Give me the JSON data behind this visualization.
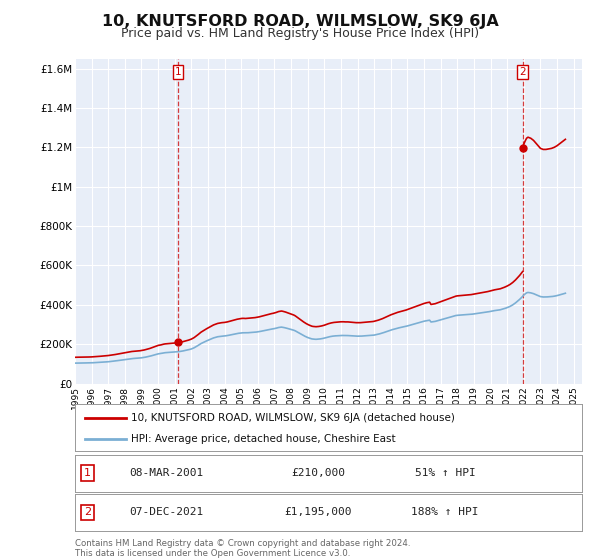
{
  "title": "10, KNUTSFORD ROAD, WILMSLOW, SK9 6JA",
  "subtitle": "Price paid vs. HM Land Registry's House Price Index (HPI)",
  "title_fontsize": 11.5,
  "subtitle_fontsize": 9,
  "background_color": "#ffffff",
  "plot_bg_color": "#e8eef8",
  "grid_color": "#ffffff",
  "ylim": [
    0,
    1650000
  ],
  "xlim_start": 1995.0,
  "xlim_end": 2025.5,
  "yticks": [
    0,
    200000,
    400000,
    600000,
    800000,
    1000000,
    1200000,
    1400000,
    1600000
  ],
  "ytick_labels": [
    "£0",
    "£200K",
    "£400K",
    "£600K",
    "£800K",
    "£1M",
    "£1.2M",
    "£1.4M",
    "£1.6M"
  ],
  "xticks": [
    1995,
    1996,
    1997,
    1998,
    1999,
    2000,
    2001,
    2002,
    2003,
    2004,
    2005,
    2006,
    2007,
    2008,
    2009,
    2010,
    2011,
    2012,
    2013,
    2014,
    2015,
    2016,
    2017,
    2018,
    2019,
    2020,
    2021,
    2022,
    2023,
    2024,
    2025
  ],
  "red_color": "#cc0000",
  "blue_color": "#7bafd4",
  "marker1_x": 2001.19,
  "marker1_y": 210000,
  "marker2_x": 2021.93,
  "marker2_y": 1195000,
  "label1_date": "08-MAR-2001",
  "label1_price": "£210,000",
  "label1_hpi": "51% ↑ HPI",
  "label2_date": "07-DEC-2021",
  "label2_price": "£1,195,000",
  "label2_hpi": "188% ↑ HPI",
  "legend_line1": "10, KNUTSFORD ROAD, WILMSLOW, SK9 6JA (detached house)",
  "legend_line2": "HPI: Average price, detached house, Cheshire East",
  "footnote1": "Contains HM Land Registry data © Crown copyright and database right 2024.",
  "footnote2": "This data is licensed under the Open Government Licence v3.0.",
  "hpi_x": [
    1995.0,
    1995.083,
    1995.167,
    1995.25,
    1995.333,
    1995.417,
    1995.5,
    1995.583,
    1995.667,
    1995.75,
    1995.833,
    1995.917,
    1996.0,
    1996.083,
    1996.167,
    1996.25,
    1996.333,
    1996.417,
    1996.5,
    1996.583,
    1996.667,
    1996.75,
    1996.833,
    1996.917,
    1997.0,
    1997.083,
    1997.167,
    1997.25,
    1997.333,
    1997.417,
    1997.5,
    1997.583,
    1997.667,
    1997.75,
    1997.833,
    1997.917,
    1998.0,
    1998.083,
    1998.167,
    1998.25,
    1998.333,
    1998.417,
    1998.5,
    1998.583,
    1998.667,
    1998.75,
    1998.833,
    1998.917,
    1999.0,
    1999.083,
    1999.167,
    1999.25,
    1999.333,
    1999.417,
    1999.5,
    1999.583,
    1999.667,
    1999.75,
    1999.833,
    1999.917,
    2000.0,
    2000.083,
    2000.167,
    2000.25,
    2000.333,
    2000.417,
    2000.5,
    2000.583,
    2000.667,
    2000.75,
    2000.833,
    2000.917,
    2001.0,
    2001.083,
    2001.167,
    2001.25,
    2001.333,
    2001.417,
    2001.5,
    2001.583,
    2001.667,
    2001.75,
    2001.833,
    2001.917,
    2002.0,
    2002.083,
    2002.167,
    2002.25,
    2002.333,
    2002.417,
    2002.5,
    2002.583,
    2002.667,
    2002.75,
    2002.833,
    2002.917,
    2003.0,
    2003.083,
    2003.167,
    2003.25,
    2003.333,
    2003.417,
    2003.5,
    2003.583,
    2003.667,
    2003.75,
    2003.833,
    2003.917,
    2004.0,
    2004.083,
    2004.167,
    2004.25,
    2004.333,
    2004.417,
    2004.5,
    2004.583,
    2004.667,
    2004.75,
    2004.833,
    2004.917,
    2005.0,
    2005.083,
    2005.167,
    2005.25,
    2005.333,
    2005.417,
    2005.5,
    2005.583,
    2005.667,
    2005.75,
    2005.833,
    2005.917,
    2006.0,
    2006.083,
    2006.167,
    2006.25,
    2006.333,
    2006.417,
    2006.5,
    2006.583,
    2006.667,
    2006.75,
    2006.833,
    2006.917,
    2007.0,
    2007.083,
    2007.167,
    2007.25,
    2007.333,
    2007.417,
    2007.5,
    2007.583,
    2007.667,
    2007.75,
    2007.833,
    2007.917,
    2008.0,
    2008.083,
    2008.167,
    2008.25,
    2008.333,
    2008.417,
    2008.5,
    2008.583,
    2008.667,
    2008.75,
    2008.833,
    2008.917,
    2009.0,
    2009.083,
    2009.167,
    2009.25,
    2009.333,
    2009.417,
    2009.5,
    2009.583,
    2009.667,
    2009.75,
    2009.833,
    2009.917,
    2010.0,
    2010.083,
    2010.167,
    2010.25,
    2010.333,
    2010.417,
    2010.5,
    2010.583,
    2010.667,
    2010.75,
    2010.833,
    2010.917,
    2011.0,
    2011.083,
    2011.167,
    2011.25,
    2011.333,
    2011.417,
    2011.5,
    2011.583,
    2011.667,
    2011.75,
    2011.833,
    2011.917,
    2012.0,
    2012.083,
    2012.167,
    2012.25,
    2012.333,
    2012.417,
    2012.5,
    2012.583,
    2012.667,
    2012.75,
    2012.833,
    2012.917,
    2013.0,
    2013.083,
    2013.167,
    2013.25,
    2013.333,
    2013.417,
    2013.5,
    2013.583,
    2013.667,
    2013.75,
    2013.833,
    2013.917,
    2014.0,
    2014.083,
    2014.167,
    2014.25,
    2014.333,
    2014.417,
    2014.5,
    2014.583,
    2014.667,
    2014.75,
    2014.833,
    2014.917,
    2015.0,
    2015.083,
    2015.167,
    2015.25,
    2015.333,
    2015.417,
    2015.5,
    2015.583,
    2015.667,
    2015.75,
    2015.833,
    2015.917,
    2016.0,
    2016.083,
    2016.167,
    2016.25,
    2016.333,
    2016.417,
    2016.5,
    2016.583,
    2016.667,
    2016.75,
    2016.833,
    2016.917,
    2017.0,
    2017.083,
    2017.167,
    2017.25,
    2017.333,
    2017.417,
    2017.5,
    2017.583,
    2017.667,
    2017.75,
    2017.833,
    2017.917,
    2018.0,
    2018.083,
    2018.167,
    2018.25,
    2018.333,
    2018.417,
    2018.5,
    2018.583,
    2018.667,
    2018.75,
    2018.833,
    2018.917,
    2019.0,
    2019.083,
    2019.167,
    2019.25,
    2019.333,
    2019.417,
    2019.5,
    2019.583,
    2019.667,
    2019.75,
    2019.833,
    2019.917,
    2020.0,
    2020.083,
    2020.167,
    2020.25,
    2020.333,
    2020.417,
    2020.5,
    2020.583,
    2020.667,
    2020.75,
    2020.833,
    2020.917,
    2021.0,
    2021.083,
    2021.167,
    2021.25,
    2021.333,
    2021.417,
    2021.5,
    2021.583,
    2021.667,
    2021.75,
    2021.833,
    2021.917,
    2022.0,
    2022.083,
    2022.167,
    2022.25,
    2022.333,
    2022.417,
    2022.5,
    2022.583,
    2022.667,
    2022.75,
    2022.833,
    2022.917,
    2023.0,
    2023.083,
    2023.167,
    2023.25,
    2023.333,
    2023.417,
    2023.5,
    2023.583,
    2023.667,
    2023.75,
    2023.833,
    2023.917,
    2024.0,
    2024.083,
    2024.167,
    2024.25,
    2024.333,
    2024.417,
    2024.5
  ],
  "hpi_y": [
    104000,
    104200,
    104400,
    104500,
    104600,
    104700,
    104800,
    104900,
    105000,
    105100,
    105200,
    105400,
    105600,
    106000,
    106400,
    106800,
    107200,
    107600,
    108000,
    108500,
    109000,
    109500,
    110000,
    110500,
    111000,
    111800,
    112600,
    113400,
    114200,
    115000,
    116000,
    117000,
    118000,
    119000,
    120000,
    121000,
    122000,
    123000,
    124000,
    125000,
    126000,
    127000,
    127500,
    128000,
    128500,
    129000,
    129500,
    130000,
    131000,
    132000,
    133000,
    134500,
    136000,
    137500,
    139000,
    141000,
    143000,
    145000,
    147000,
    149000,
    151000,
    152000,
    153000,
    154500,
    156000,
    157000,
    157500,
    158000,
    158500,
    159000,
    159500,
    160000,
    160500,
    161000,
    161500,
    162500,
    163500,
    164500,
    166000,
    167500,
    169000,
    170500,
    172000,
    174000,
    176000,
    179000,
    182000,
    186000,
    190000,
    194500,
    199000,
    203500,
    207000,
    210500,
    214000,
    217000,
    220000,
    223000,
    226000,
    229000,
    232000,
    234000,
    236000,
    238000,
    239000,
    240000,
    241000,
    241500,
    242000,
    243000,
    244000,
    245500,
    247000,
    248500,
    250000,
    251500,
    253000,
    254500,
    255500,
    256500,
    257500,
    258000,
    258000,
    257500,
    258000,
    258500,
    259000,
    259500,
    260000,
    260500,
    261000,
    262000,
    263000,
    264000,
    265500,
    267000,
    268500,
    270000,
    271500,
    273000,
    274500,
    276000,
    277000,
    278000,
    279500,
    281000,
    283000,
    285000,
    286000,
    287000,
    286000,
    284500,
    283000,
    281000,
    279000,
    277000,
    275000,
    273000,
    271000,
    268000,
    264000,
    260000,
    256000,
    252000,
    248000,
    244000,
    240500,
    237000,
    234000,
    231500,
    229000,
    227000,
    226000,
    225500,
    225000,
    225500,
    226000,
    227000,
    228000,
    229500,
    231000,
    233000,
    235000,
    237000,
    238500,
    240000,
    241000,
    242000,
    242500,
    243000,
    243500,
    244000,
    244500,
    244500,
    244500,
    244000,
    244000,
    244000,
    243500,
    243000,
    242500,
    242000,
    241500,
    241000,
    241000,
    241000,
    241000,
    241500,
    242000,
    242500,
    243000,
    243500,
    244000,
    244500,
    245000,
    245500,
    246500,
    248000,
    249500,
    251000,
    253000,
    255000,
    257000,
    259500,
    262000,
    264500,
    267000,
    269500,
    272000,
    274000,
    276000,
    278000,
    280000,
    282000,
    283500,
    285000,
    286500,
    288000,
    289500,
    291000,
    293000,
    295000,
    297000,
    299000,
    301000,
    303000,
    305000,
    307000,
    309000,
    311000,
    313000,
    315000,
    317000,
    318500,
    320000,
    321000,
    322000,
    313000,
    314000,
    315000,
    316000,
    318000,
    320000,
    322000,
    324000,
    326000,
    328000,
    330000,
    332000,
    334000,
    336000,
    338000,
    340000,
    342000,
    344000,
    346000,
    347000,
    347500,
    348000,
    348500,
    349000,
    349500,
    350000,
    350500,
    351000,
    351500,
    352000,
    353000,
    354000,
    355000,
    356000,
    357000,
    358000,
    359000,
    360000,
    361000,
    362000,
    363000,
    364000,
    365500,
    367000,
    368500,
    370000,
    371000,
    372000,
    373000,
    374000,
    375000,
    377000,
    379000,
    381000,
    383500,
    386000,
    389000,
    392000,
    396000,
    400000,
    405000,
    410000,
    416000,
    422000,
    428000,
    435000,
    442000,
    450000,
    456000,
    461000,
    463000,
    462000,
    461000,
    459000,
    457000,
    454000,
    451000,
    448000,
    445000,
    442000,
    441000,
    440000,
    440000,
    440000,
    440500,
    441000,
    441500,
    442000,
    443000,
    444000,
    445500,
    447000,
    449000,
    451000,
    453000,
    455000,
    457000,
    459000
  ],
  "red_x_seg1": [
    1995.0,
    1995.083,
    1995.167,
    1995.25,
    1995.333,
    1995.417,
    1995.5,
    1995.583,
    1995.667,
    1995.75,
    1995.833,
    1995.917,
    1996.0,
    1996.083,
    1996.167,
    1996.25,
    1996.333,
    1996.417,
    1996.5,
    1996.583,
    1996.667,
    1996.75,
    1996.833,
    1996.917,
    1997.0,
    1997.083,
    1997.167,
    1997.25,
    1997.333,
    1997.417,
    1997.5,
    1997.583,
    1997.667,
    1997.75,
    1997.833,
    1997.917,
    1998.0,
    1998.083,
    1998.167,
    1998.25,
    1998.333,
    1998.417,
    1998.5,
    1998.583,
    1998.667,
    1998.75,
    1998.833,
    1998.917,
    1999.0,
    1999.083,
    1999.167,
    1999.25,
    1999.333,
    1999.417,
    1999.5,
    1999.583,
    1999.667,
    1999.75,
    1999.833,
    1999.917,
    2000.0,
    2000.083,
    2000.167,
    2000.25,
    2000.333,
    2000.417,
    2000.5,
    2000.583,
    2000.667,
    2000.75,
    2000.833,
    2000.917,
    2001.0,
    2001.083,
    2001.167,
    2001.19
  ],
  "red_hpi_at_sale1": 163500,
  "sale1_price": 210000,
  "red_x_seg2": [
    2001.19,
    2001.25,
    2001.333,
    2001.417,
    2001.5,
    2001.583,
    2001.667,
    2001.75,
    2001.833,
    2001.917,
    2002.0,
    2002.083,
    2002.167,
    2002.25,
    2002.333,
    2002.417,
    2002.5,
    2002.583,
    2002.667,
    2002.75,
    2002.833,
    2002.917,
    2003.0,
    2003.083,
    2003.167,
    2003.25,
    2003.333,
    2003.417,
    2003.5,
    2003.583,
    2003.667,
    2003.75,
    2003.833,
    2003.917,
    2004.0,
    2004.083,
    2004.167,
    2004.25,
    2004.333,
    2004.417,
    2004.5,
    2004.583,
    2004.667,
    2004.75,
    2004.833,
    2004.917,
    2005.0,
    2005.083,
    2005.167,
    2005.25,
    2005.333,
    2005.417,
    2005.5,
    2005.583,
    2005.667,
    2005.75,
    2005.833,
    2005.917,
    2006.0,
    2006.083,
    2006.167,
    2006.25,
    2006.333,
    2006.417,
    2006.5,
    2006.583,
    2006.667,
    2006.75,
    2006.833,
    2006.917,
    2007.0,
    2007.083,
    2007.167,
    2007.25,
    2007.333,
    2007.417,
    2007.5,
    2007.583,
    2007.667,
    2007.75,
    2007.833,
    2007.917,
    2008.0,
    2008.083,
    2008.167,
    2008.25,
    2008.333,
    2008.417,
    2008.5,
    2008.583,
    2008.667,
    2008.75,
    2008.833,
    2008.917,
    2009.0,
    2009.083,
    2009.167,
    2009.25,
    2009.333,
    2009.417,
    2009.5,
    2009.583,
    2009.667,
    2009.75,
    2009.833,
    2009.917,
    2010.0,
    2010.083,
    2010.167,
    2010.25,
    2010.333,
    2010.417,
    2010.5,
    2010.583,
    2010.667,
    2010.75,
    2010.833,
    2010.917,
    2011.0,
    2011.083,
    2011.167,
    2011.25,
    2011.333,
    2011.417,
    2011.5,
    2011.583,
    2011.667,
    2011.75,
    2011.833,
    2011.917,
    2012.0,
    2012.083,
    2012.167,
    2012.25,
    2012.333,
    2012.417,
    2012.5,
    2012.583,
    2012.667,
    2012.75,
    2012.833,
    2012.917,
    2013.0,
    2013.083,
    2013.167,
    2013.25,
    2013.333,
    2013.417,
    2013.5,
    2013.583,
    2013.667,
    2013.75,
    2013.833,
    2013.917,
    2014.0,
    2014.083,
    2014.167,
    2014.25,
    2014.333,
    2014.417,
    2014.5,
    2014.583,
    2014.667,
    2014.75,
    2014.833,
    2014.917,
    2015.0,
    2015.083,
    2015.167,
    2015.25,
    2015.333,
    2015.417,
    2015.5,
    2015.583,
    2015.667,
    2015.75,
    2015.833,
    2015.917,
    2016.0,
    2016.083,
    2016.167,
    2016.25,
    2016.333,
    2016.417,
    2016.5,
    2016.583,
    2016.667,
    2016.75,
    2016.833,
    2016.917,
    2017.0,
    2017.083,
    2017.167,
    2017.25,
    2017.333,
    2017.417,
    2017.5,
    2017.583,
    2017.667,
    2017.75,
    2017.833,
    2017.917,
    2018.0,
    2018.083,
    2018.167,
    2018.25,
    2018.333,
    2018.417,
    2018.5,
    2018.583,
    2018.667,
    2018.75,
    2018.833,
    2018.917,
    2019.0,
    2019.083,
    2019.167,
    2019.25,
    2019.333,
    2019.417,
    2019.5,
    2019.583,
    2019.667,
    2019.75,
    2019.833,
    2019.917,
    2020.0,
    2020.083,
    2020.167,
    2020.25,
    2020.333,
    2020.417,
    2020.5,
    2020.583,
    2020.667,
    2020.75,
    2020.833,
    2020.917,
    2021.0,
    2021.083,
    2021.167,
    2021.25,
    2021.333,
    2021.417,
    2021.5,
    2021.583,
    2021.667,
    2021.75,
    2021.833,
    2021.917,
    2021.93
  ],
  "red_hpi_at_sale2": 442000,
  "sale2_price": 1195000,
  "red_x_seg3": [
    2021.93,
    2022.0,
    2022.083,
    2022.167,
    2022.25,
    2022.333,
    2022.417,
    2022.5,
    2022.583,
    2022.667,
    2022.75,
    2022.833,
    2022.917,
    2023.0,
    2023.083,
    2023.167,
    2023.25,
    2023.333,
    2023.417,
    2023.5,
    2023.583,
    2023.667,
    2023.75,
    2023.833,
    2023.917,
    2024.0,
    2024.083,
    2024.167,
    2024.25,
    2024.333,
    2024.417,
    2024.5
  ]
}
